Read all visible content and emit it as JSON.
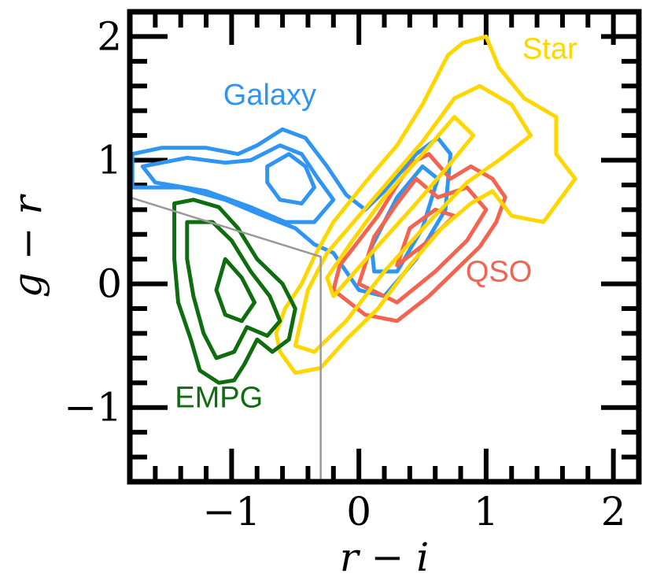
{
  "chart_data": {
    "type": "contour",
    "xlabel": "r − i",
    "ylabel": "g − r",
    "xlim": [
      -1.8,
      2.2
    ],
    "ylim": [
      -1.6,
      2.2
    ],
    "x_ticks": [
      -1,
      0,
      1,
      2
    ],
    "x_tick_labels": [
      "−1",
      "0",
      "1",
      "2"
    ],
    "y_ticks": [
      -1,
      0,
      1,
      2
    ],
    "y_tick_labels": [
      "−1",
      "0",
      "1",
      "2"
    ],
    "series": [
      {
        "name": "Galaxy",
        "color": "#2f95f0",
        "contours": [
          [
            [
              -1.78,
              1.05
            ],
            [
              -1.55,
              1.1
            ],
            [
              -1.2,
              1.1
            ],
            [
              -0.95,
              1.05
            ],
            [
              -0.8,
              1.12
            ],
            [
              -0.6,
              1.25
            ],
            [
              -0.42,
              1.18
            ],
            [
              -0.25,
              0.95
            ],
            [
              -0.1,
              0.72
            ],
            [
              0.05,
              0.6
            ],
            [
              0.2,
              0.75
            ],
            [
              0.45,
              1.05
            ],
            [
              0.62,
              1.18
            ],
            [
              0.72,
              1.05
            ],
            [
              0.68,
              0.6
            ],
            [
              0.45,
              0.2
            ],
            [
              0.2,
              -0.1
            ],
            [
              0.0,
              -0.05
            ],
            [
              -0.2,
              0.25
            ],
            [
              -0.35,
              0.32
            ],
            [
              -0.5,
              0.45
            ],
            [
              -0.75,
              0.55
            ],
            [
              -1.05,
              0.68
            ],
            [
              -1.4,
              0.78
            ],
            [
              -1.78,
              0.78
            ]
          ],
          [
            [
              -1.7,
              0.95
            ],
            [
              -1.35,
              1.02
            ],
            [
              -1.05,
              0.98
            ],
            [
              -0.85,
              1.0
            ],
            [
              -0.62,
              1.12
            ],
            [
              -0.45,
              1.05
            ],
            [
              -0.32,
              0.85
            ],
            [
              -0.2,
              0.68
            ],
            [
              -0.35,
              0.5
            ],
            [
              -0.58,
              0.5
            ],
            [
              -0.85,
              0.62
            ],
            [
              -1.2,
              0.75
            ],
            [
              -1.6,
              0.82
            ]
          ],
          [
            [
              -0.72,
              0.95
            ],
            [
              -0.55,
              1.05
            ],
            [
              -0.42,
              0.95
            ],
            [
              -0.35,
              0.78
            ],
            [
              -0.45,
              0.65
            ],
            [
              -0.62,
              0.68
            ],
            [
              -0.72,
              0.82
            ]
          ],
          [
            [
              0.1,
              0.3
            ],
            [
              0.3,
              0.7
            ],
            [
              0.5,
              0.95
            ],
            [
              0.62,
              0.85
            ],
            [
              0.5,
              0.45
            ],
            [
              0.3,
              0.1
            ],
            [
              0.12,
              0.1
            ]
          ]
        ]
      },
      {
        "name": "Star",
        "color": "#ffd700",
        "contours": [
          [
            [
              -0.62,
              -0.55
            ],
            [
              -0.5,
              -0.72
            ],
            [
              -0.3,
              -0.68
            ],
            [
              -0.1,
              -0.45
            ],
            [
              0.15,
              -0.2
            ],
            [
              0.4,
              0.15
            ],
            [
              0.65,
              0.45
            ],
            [
              0.88,
              0.65
            ],
            [
              1.05,
              0.75
            ],
            [
              1.2,
              0.55
            ],
            [
              1.45,
              0.5
            ],
            [
              1.7,
              0.85
            ],
            [
              1.55,
              1.05
            ],
            [
              1.55,
              1.35
            ],
            [
              1.3,
              1.5
            ],
            [
              1.1,
              1.75
            ],
            [
              1.0,
              2.0
            ],
            [
              0.82,
              1.95
            ],
            [
              0.7,
              1.85
            ],
            [
              0.5,
              1.45
            ],
            [
              0.3,
              1.12
            ],
            [
              0.05,
              0.82
            ],
            [
              -0.2,
              0.5
            ],
            [
              -0.35,
              0.22
            ],
            [
              -0.45,
              0.0
            ],
            [
              -0.58,
              -0.2
            ],
            [
              -0.65,
              -0.4
            ]
          ],
          [
            [
              -0.5,
              -0.5
            ],
            [
              -0.35,
              -0.55
            ],
            [
              -0.1,
              -0.3
            ],
            [
              0.2,
              0.1
            ],
            [
              0.55,
              0.5
            ],
            [
              0.85,
              0.82
            ],
            [
              1.1,
              1.0
            ],
            [
              1.35,
              1.2
            ],
            [
              1.2,
              1.45
            ],
            [
              0.95,
              1.6
            ],
            [
              0.75,
              1.5
            ],
            [
              0.5,
              1.15
            ],
            [
              0.25,
              0.85
            ],
            [
              0.0,
              0.55
            ],
            [
              -0.25,
              0.25
            ],
            [
              -0.4,
              -0.05
            ]
          ],
          [
            [
              -0.2,
              -0.1
            ],
            [
              0.1,
              0.25
            ],
            [
              0.45,
              0.65
            ],
            [
              0.7,
              0.95
            ],
            [
              0.9,
              1.2
            ],
            [
              0.75,
              1.35
            ],
            [
              0.5,
              1.05
            ],
            [
              0.2,
              0.7
            ],
            [
              -0.05,
              0.35
            ],
            [
              -0.25,
              0.05
            ]
          ]
        ]
      },
      {
        "name": "QSO",
        "color": "#f26450",
        "contours": [
          [
            [
              -0.2,
              -0.05
            ],
            [
              0.05,
              -0.25
            ],
            [
              0.3,
              -0.3
            ],
            [
              0.55,
              -0.1
            ],
            [
              0.75,
              0.1
            ],
            [
              0.95,
              0.3
            ],
            [
              1.08,
              0.5
            ],
            [
              1.15,
              0.7
            ],
            [
              1.05,
              0.85
            ],
            [
              0.88,
              0.95
            ],
            [
              0.72,
              0.85
            ],
            [
              0.55,
              1.05
            ],
            [
              0.42,
              0.98
            ],
            [
              0.3,
              0.8
            ],
            [
              0.15,
              0.55
            ],
            [
              0.0,
              0.35
            ],
            [
              -0.15,
              0.15
            ]
          ],
          [
            [
              0.0,
              0.0
            ],
            [
              0.3,
              -0.15
            ],
            [
              0.6,
              0.1
            ],
            [
              0.85,
              0.35
            ],
            [
              1.0,
              0.6
            ],
            [
              0.85,
              0.78
            ],
            [
              0.62,
              0.7
            ],
            [
              0.45,
              0.85
            ],
            [
              0.3,
              0.65
            ],
            [
              0.12,
              0.38
            ]
          ],
          [
            [
              0.3,
              0.15
            ],
            [
              0.55,
              0.35
            ],
            [
              0.75,
              0.55
            ],
            [
              0.6,
              0.6
            ],
            [
              0.4,
              0.45
            ]
          ]
        ]
      },
      {
        "name": "EMPG",
        "color": "#0f6d0f",
        "contours": [
          [
            [
              -1.45,
              0.65
            ],
            [
              -1.3,
              0.68
            ],
            [
              -1.1,
              0.62
            ],
            [
              -0.95,
              0.45
            ],
            [
              -0.8,
              0.2
            ],
            [
              -0.6,
              0.0
            ],
            [
              -0.5,
              -0.2
            ],
            [
              -0.55,
              -0.45
            ],
            [
              -0.68,
              -0.55
            ],
            [
              -0.8,
              -0.45
            ],
            [
              -0.9,
              -0.65
            ],
            [
              -0.98,
              -0.78
            ],
            [
              -1.1,
              -0.8
            ],
            [
              -1.25,
              -0.7
            ],
            [
              -1.32,
              -0.45
            ],
            [
              -1.42,
              -0.15
            ],
            [
              -1.45,
              0.2
            ]
          ],
          [
            [
              -1.35,
              0.5
            ],
            [
              -1.15,
              0.5
            ],
            [
              -1.0,
              0.35
            ],
            [
              -0.85,
              0.1
            ],
            [
              -0.7,
              -0.1
            ],
            [
              -0.62,
              -0.3
            ],
            [
              -0.72,
              -0.42
            ],
            [
              -0.88,
              -0.35
            ],
            [
              -0.98,
              -0.55
            ],
            [
              -1.12,
              -0.6
            ],
            [
              -1.22,
              -0.4
            ],
            [
              -1.3,
              -0.1
            ],
            [
              -1.35,
              0.2
            ]
          ],
          [
            [
              -1.05,
              0.2
            ],
            [
              -0.92,
              0.05
            ],
            [
              -0.82,
              -0.15
            ],
            [
              -0.92,
              -0.3
            ],
            [
              -1.05,
              -0.25
            ],
            [
              -1.12,
              -0.05
            ]
          ]
        ]
      }
    ],
    "labels": [
      {
        "text": "Galaxy",
        "x": -0.7,
        "y": 1.45,
        "color": "#2f95f0"
      },
      {
        "text": "Star",
        "x": 1.5,
        "y": 1.82,
        "color": "#ffd700"
      },
      {
        "text": "QSO",
        "x": 1.1,
        "y": 0.02,
        "color": "#f26450"
      },
      {
        "text": "EMPG",
        "x": -1.1,
        "y": -1.0,
        "color": "#0f6d0f"
      }
    ],
    "selection_boundary": {
      "color": "#999999",
      "points": [
        [
          -1.8,
          0.7
        ],
        [
          -0.3,
          0.22
        ],
        [
          -0.3,
          -1.6
        ]
      ]
    }
  }
}
